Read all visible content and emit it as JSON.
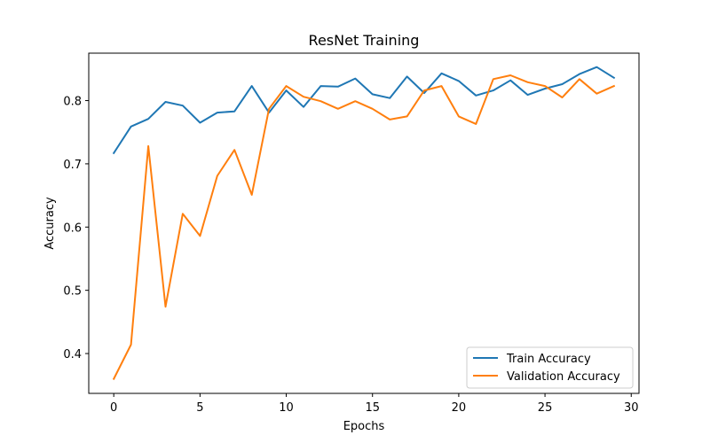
{
  "chart_data": {
    "type": "line",
    "title": "ResNet Training",
    "xlabel": "Epochs",
    "ylabel": "Accuracy",
    "xlim": [
      -1.45,
      30.45
    ],
    "ylim": [
      0.337,
      0.875
    ],
    "xticks": [
      0,
      5,
      10,
      15,
      20,
      25,
      30
    ],
    "yticks": [
      0.4,
      0.5,
      0.6,
      0.7,
      0.8
    ],
    "xtick_labels": [
      "0",
      "5",
      "10",
      "15",
      "20",
      "25",
      "30"
    ],
    "ytick_labels": [
      "0.4",
      "0.5",
      "0.6",
      "0.7",
      "0.8"
    ],
    "grid": false,
    "legend_position": "lower-right",
    "x": [
      0,
      1,
      2,
      3,
      4,
      5,
      6,
      7,
      8,
      9,
      10,
      11,
      12,
      13,
      14,
      15,
      16,
      17,
      18,
      19,
      20,
      21,
      22,
      23,
      24,
      25,
      26,
      27,
      28,
      29
    ],
    "series": [
      {
        "name": "Train Accuracy",
        "color": "#1f77b4",
        "values": [
          0.717,
          0.759,
          0.771,
          0.798,
          0.792,
          0.765,
          0.781,
          0.783,
          0.823,
          0.781,
          0.816,
          0.79,
          0.823,
          0.822,
          0.835,
          0.81,
          0.804,
          0.838,
          0.812,
          0.843,
          0.831,
          0.808,
          0.816,
          0.832,
          0.809,
          0.819,
          0.826,
          0.842,
          0.853,
          0.836
        ]
      },
      {
        "name": "Validation Accuracy",
        "color": "#ff7f0e",
        "values": [
          0.36,
          0.414,
          0.728,
          0.474,
          0.621,
          0.586,
          0.681,
          0.722,
          0.651,
          0.787,
          0.823,
          0.806,
          0.799,
          0.787,
          0.799,
          0.787,
          0.77,
          0.775,
          0.816,
          0.823,
          0.775,
          0.763,
          0.834,
          0.84,
          0.829,
          0.823,
          0.805,
          0.834,
          0.811,
          0.823
        ]
      }
    ]
  }
}
